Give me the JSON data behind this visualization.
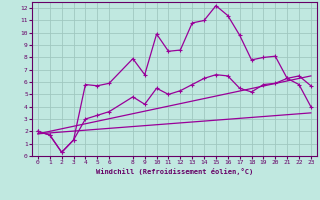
{
  "xlabel": "Windchill (Refroidissement éolien,°C)",
  "background_color": "#c0e8e0",
  "grid_color": "#a0c8c0",
  "line_color": "#990099",
  "spine_color": "#660066",
  "xlim": [
    -0.5,
    23.5
  ],
  "ylim": [
    0,
    12.5
  ],
  "xticks": [
    0,
    1,
    2,
    3,
    4,
    5,
    6,
    8,
    9,
    10,
    11,
    12,
    13,
    14,
    15,
    16,
    17,
    18,
    19,
    20,
    21,
    22,
    23
  ],
  "yticks": [
    0,
    1,
    2,
    3,
    4,
    5,
    6,
    7,
    8,
    9,
    10,
    11,
    12
  ],
  "line1_x": [
    0,
    1,
    2,
    3,
    4,
    5,
    6,
    8,
    9,
    10,
    11,
    12,
    13,
    14,
    15,
    16,
    17,
    18,
    19,
    20,
    21,
    22,
    23
  ],
  "line1_y": [
    2.0,
    1.7,
    0.3,
    1.3,
    5.8,
    5.7,
    5.9,
    7.9,
    6.6,
    9.9,
    8.5,
    8.6,
    10.8,
    11.0,
    12.2,
    11.4,
    9.8,
    7.8,
    8.0,
    8.1,
    6.3,
    5.8,
    4.0
  ],
  "line2_x": [
    0,
    1,
    2,
    3,
    4,
    5,
    6,
    8,
    9,
    10,
    11,
    12,
    13,
    14,
    15,
    16,
    17,
    18,
    19,
    20,
    21,
    22,
    23
  ],
  "line2_y": [
    2.0,
    1.7,
    0.3,
    1.3,
    3.0,
    3.3,
    3.6,
    4.8,
    4.2,
    5.5,
    5.0,
    5.3,
    5.8,
    6.3,
    6.6,
    6.5,
    5.5,
    5.2,
    5.8,
    5.9,
    6.3,
    6.5,
    5.7
  ],
  "line3_x": [
    0,
    23
  ],
  "line3_y": [
    1.8,
    6.5
  ],
  "line4_x": [
    0,
    23
  ],
  "line4_y": [
    1.8,
    3.5
  ]
}
